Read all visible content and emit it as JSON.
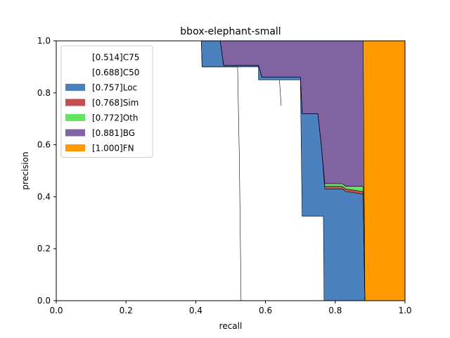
{
  "chart_data": {
    "type": "area",
    "title": "bbox-elephant-small",
    "xlabel": "recall",
    "ylabel": "precision",
    "xlim": [
      0,
      1
    ],
    "ylim": [
      0,
      1
    ],
    "xticks": [
      "0.0",
      "0.2",
      "0.4",
      "0.6",
      "0.8",
      "1.0"
    ],
    "yticks": [
      "0.0",
      "0.2",
      "0.4",
      "0.6",
      "0.8",
      "1.0"
    ],
    "grid": false,
    "legend_position": "top-left",
    "series": [
      {
        "name": "[0.514]C75",
        "color": "#ffffff",
        "x": [
          0,
          0.416,
          0.418,
          0.52,
          0.525,
          0.53,
          1
        ],
        "y": [
          1,
          1,
          0.9,
          0.9,
          0.55,
          0,
          0
        ]
      },
      {
        "name": "[0.688]C50",
        "color": "#ffffff",
        "x": [
          0,
          0.416,
          0.418,
          0.58,
          0.58,
          0.64,
          0.645,
          0.64,
          0.7,
          0.705,
          0.766,
          0.768,
          1
        ],
        "y": [
          1,
          1,
          0.9,
          0.9,
          0.85,
          0.85,
          0.75,
          0.85,
          0.85,
          0.325,
          0.325,
          0,
          0
        ]
      },
      {
        "name": "[0.757]Loc",
        "color": "#4c81bf",
        "x": [
          0,
          0.47,
          0.48,
          0.58,
          0.59,
          0.64,
          0.7,
          0.705,
          0.75,
          0.76,
          0.77,
          0.82,
          0.83,
          0.88,
          0.885,
          1
        ],
        "y": [
          1,
          1,
          0.905,
          0.905,
          0.86,
          0.86,
          0.86,
          0.72,
          0.72,
          0.6,
          0.43,
          0.43,
          0.42,
          0.41,
          0,
          0
        ]
      },
      {
        "name": "[0.768]Sim",
        "color": "#c44e52",
        "x": [
          0,
          0.47,
          0.48,
          0.58,
          0.59,
          0.64,
          0.7,
          0.705,
          0.75,
          0.76,
          0.77,
          0.82,
          0.83,
          0.88,
          0.885,
          1
        ],
        "y": [
          1,
          1,
          0.905,
          0.905,
          0.86,
          0.86,
          0.86,
          0.72,
          0.72,
          0.6,
          0.44,
          0.44,
          0.43,
          0.42,
          0,
          0
        ]
      },
      {
        "name": "[0.772]Oth",
        "color": "#62e660",
        "x": [
          0,
          0.47,
          0.48,
          0.58,
          0.59,
          0.64,
          0.7,
          0.705,
          0.75,
          0.76,
          0.77,
          0.82,
          0.83,
          0.88,
          0.885,
          1
        ],
        "y": [
          1,
          1,
          0.905,
          0.905,
          0.86,
          0.86,
          0.86,
          0.72,
          0.72,
          0.6,
          0.45,
          0.45,
          0.44,
          0.44,
          0,
          0
        ]
      },
      {
        "name": "[0.881]BG",
        "color": "#8063a3",
        "x": [
          0,
          0.88,
          0.885,
          1
        ],
        "y": [
          1,
          1,
          0,
          0
        ]
      },
      {
        "name": "[1.000]FN",
        "color": "#ff9a00",
        "x": [
          0,
          1
        ],
        "y": [
          1,
          1
        ]
      }
    ]
  }
}
